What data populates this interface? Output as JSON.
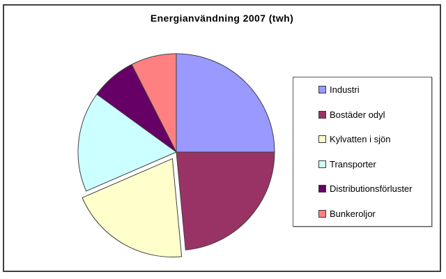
{
  "chart_data": {
    "type": "pie",
    "title": "Energianvändning 2007 (twh)",
    "unit": "twh",
    "start_angle_deg": 0,
    "direction": "clockwise",
    "legend_position": "right",
    "outline_color": "#404040",
    "background_color": "#FFFFFF",
    "slices": [
      {
        "label": "Industri",
        "percent": 25,
        "color": "#9999FF",
        "exploded": false
      },
      {
        "label": "Bostäder odyl",
        "percent": 23.5,
        "color": "#993366",
        "exploded": false
      },
      {
        "label": "Kylvatten i sjön",
        "percent": 20,
        "color": "#FFFFCC",
        "exploded": true
      },
      {
        "label": "Transporter",
        "percent": 16.5,
        "color": "#CCFFFF",
        "exploded": false
      },
      {
        "label": "Distributionsförluster",
        "percent": 7.5,
        "color": "#660066",
        "exploded": false
      },
      {
        "label": "Bunkeroljor",
        "percent": 7.5,
        "color": "#FF8080",
        "exploded": false
      }
    ]
  }
}
